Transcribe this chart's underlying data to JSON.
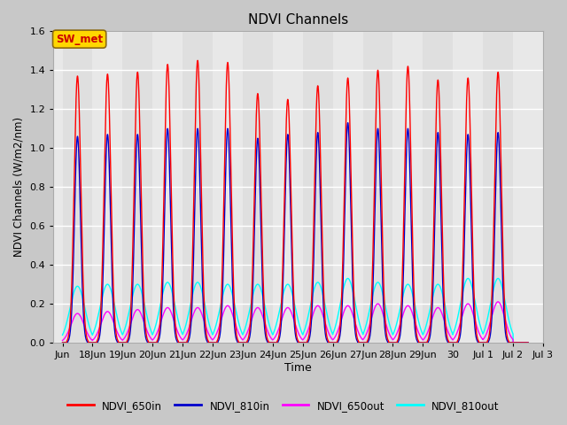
{
  "title": "NDVI Channels",
  "xlabel": "Time",
  "ylabel": "NDVI Channels (W/m2/nm)",
  "ylim": [
    0.0,
    1.6
  ],
  "xlim_start": -0.3,
  "xlim_end": 16.0,
  "fig_bg_color": "#c8c8c8",
  "plot_bg_color": "#e8e8e8",
  "annotation_text": "SW_met",
  "annotation_color": "#cc0000",
  "annotation_bg": "#ffd700",
  "series": {
    "NDVI_650in": {
      "color": "#ff0000",
      "lw": 1.0
    },
    "NDVI_810in": {
      "color": "#0000cc",
      "lw": 1.0
    },
    "NDVI_650out": {
      "color": "#ff00ff",
      "lw": 1.0
    },
    "NDVI_810out": {
      "color": "#00ffff",
      "lw": 1.0
    }
  },
  "tick_labels": [
    "Jun",
    "18Jun",
    "19Jun",
    "20Jun",
    "21Jun",
    "22Jun",
    "23Jun",
    "24Jun",
    "25Jun",
    "26Jun",
    "27Jun",
    "28Jun",
    "29Jun",
    "30",
    "Jul 1",
    "Jul 2",
    "Jul 3"
  ],
  "tick_positions": [
    0,
    1,
    2,
    3,
    4,
    5,
    6,
    7,
    8,
    9,
    10,
    11,
    12,
    13,
    14,
    15,
    16
  ],
  "peaks_650in": [
    1.37,
    1.38,
    1.39,
    1.43,
    1.45,
    1.44,
    1.28,
    1.25,
    1.32,
    1.36,
    1.4,
    1.42,
    1.35,
    1.36,
    1.39
  ],
  "peaks_810in": [
    1.06,
    1.07,
    1.07,
    1.1,
    1.1,
    1.1,
    1.05,
    1.07,
    1.08,
    1.13,
    1.1,
    1.1,
    1.08,
    1.07,
    1.08
  ],
  "peaks_650out": [
    0.15,
    0.16,
    0.17,
    0.18,
    0.18,
    0.19,
    0.18,
    0.18,
    0.19,
    0.19,
    0.2,
    0.19,
    0.18,
    0.2,
    0.21
  ],
  "peaks_810out": [
    0.29,
    0.3,
    0.3,
    0.31,
    0.31,
    0.3,
    0.3,
    0.3,
    0.31,
    0.33,
    0.31,
    0.3,
    0.3,
    0.33,
    0.33
  ]
}
